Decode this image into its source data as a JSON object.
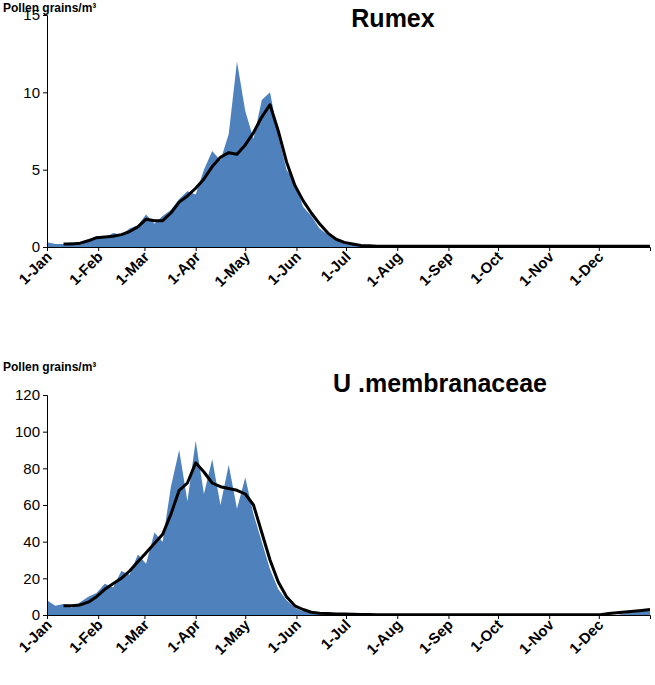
{
  "chart_data": [
    {
      "type": "line",
      "title": "Rumex",
      "ylabel": "Pollen grains/m³",
      "x": [
        1,
        6,
        11,
        16,
        21,
        26,
        31,
        36,
        41,
        46,
        51,
        56,
        61,
        66,
        71,
        76,
        81,
        86,
        91,
        96,
        101,
        106,
        111,
        116,
        121,
        126,
        131,
        136,
        141,
        146,
        151,
        156,
        161,
        166,
        171,
        176,
        181,
        186,
        191,
        196,
        201,
        206,
        211,
        216,
        221,
        226,
        231,
        236,
        241,
        246,
        251,
        256,
        261,
        266,
        271,
        276,
        281,
        286,
        291,
        296,
        301,
        306,
        311,
        316,
        321,
        326,
        331,
        336,
        341,
        346,
        351,
        356,
        361,
        366
      ],
      "series": [
        {
          "type": "area",
          "color": "#4f81bd",
          "values": [
            0.3,
            0.2,
            0.2,
            0.3,
            0.2,
            0.5,
            0.7,
            0.6,
            0.9,
            0.8,
            1.2,
            1.4,
            2.1,
            1.5,
            2.0,
            2.4,
            3.1,
            3.6,
            3.4,
            5.0,
            6.2,
            5.6,
            7.3,
            12.0,
            8.8,
            7.0,
            9.5,
            10.0,
            7.2,
            5.0,
            4.2,
            2.6,
            2.0,
            1.2,
            0.8,
            0.4,
            0.3,
            0.2,
            0.1,
            0.05,
            0,
            0,
            0,
            0,
            0,
            0,
            0,
            0,
            0,
            0,
            0,
            0,
            0,
            0,
            0,
            0,
            0,
            0,
            0,
            0,
            0,
            0,
            0,
            0,
            0,
            0,
            0,
            0,
            0,
            0,
            0,
            0,
            0,
            0
          ]
        },
        {
          "type": "line",
          "color": "#000000",
          "values": [
            null,
            null,
            0.2,
            0.2,
            0.25,
            0.4,
            0.6,
            0.65,
            0.7,
            0.8,
            1.0,
            1.3,
            1.8,
            1.7,
            1.7,
            2.2,
            2.9,
            3.3,
            3.8,
            4.4,
            5.2,
            5.8,
            6.1,
            6.0,
            6.6,
            7.4,
            8.4,
            9.2,
            7.5,
            5.5,
            4.0,
            3.0,
            2.2,
            1.5,
            0.9,
            0.5,
            0.3,
            0.2,
            0.1,
            0.08,
            0.05,
            0.05,
            0.05,
            0.05,
            0.05,
            0.05,
            0.05,
            0.05,
            0.05,
            0.05,
            0.05,
            0.05,
            0.05,
            0.05,
            0.05,
            0.05,
            0.05,
            0.05,
            0.05,
            0.05,
            0.05,
            0.05,
            0.05,
            0.05,
            0.05,
            0.05,
            0.05,
            0.05,
            0.05,
            0.05,
            0.05,
            0.05,
            0.05,
            0.05
          ]
        }
      ],
      "xlim": [
        1,
        366
      ],
      "xticks": [
        {
          "value": 1,
          "label": "1-Jan"
        },
        {
          "value": 32,
          "label": "1-Feb"
        },
        {
          "value": 60,
          "label": "1-Mar"
        },
        {
          "value": 91,
          "label": "1-Apr"
        },
        {
          "value": 121,
          "label": "1-May"
        },
        {
          "value": 152,
          "label": "1-Jun"
        },
        {
          "value": 182,
          "label": "1-Jul"
        },
        {
          "value": 213,
          "label": "1-Aug"
        },
        {
          "value": 244,
          "label": "1-Sep"
        },
        {
          "value": 274,
          "label": "1-Oct"
        },
        {
          "value": 305,
          "label": "1-Nov"
        },
        {
          "value": 335,
          "label": "1-Dec"
        }
      ],
      "ylim": [
        0,
        15
      ],
      "yticks": [
        0,
        5,
        10,
        15
      ],
      "grid": false
    },
    {
      "type": "line",
      "title": "U .membranaceae",
      "ylabel": "Pollen grains/m³",
      "x": [
        1,
        6,
        11,
        16,
        21,
        26,
        31,
        36,
        41,
        46,
        51,
        56,
        61,
        66,
        71,
        76,
        81,
        86,
        91,
        96,
        101,
        106,
        111,
        116,
        121,
        126,
        131,
        136,
        141,
        146,
        151,
        156,
        161,
        166,
        171,
        176,
        181,
        186,
        191,
        196,
        201,
        206,
        211,
        216,
        221,
        226,
        231,
        236,
        241,
        246,
        251,
        256,
        261,
        266,
        271,
        276,
        281,
        286,
        291,
        296,
        301,
        306,
        311,
        316,
        321,
        326,
        331,
        336,
        341,
        346,
        351,
        356,
        361,
        366
      ],
      "series": [
        {
          "type": "area",
          "color": "#4f81bd",
          "values": [
            8,
            5,
            6,
            4,
            7,
            10,
            12,
            17,
            15,
            24,
            22,
            33,
            28,
            45,
            40,
            70,
            90,
            62,
            95,
            66,
            85,
            60,
            82,
            58,
            75,
            55,
            40,
            25,
            14,
            8,
            4,
            2,
            1,
            0.5,
            0.3,
            0,
            0,
            0,
            0,
            0,
            0,
            0,
            0,
            0,
            0,
            0,
            0,
            0,
            0,
            0,
            0,
            0,
            0,
            0,
            0,
            0,
            0,
            0,
            0,
            0,
            0,
            0,
            0,
            0,
            0,
            0,
            0,
            0,
            0,
            0,
            1,
            1.5,
            2,
            2.5
          ]
        },
        {
          "type": "line",
          "color": "#000000",
          "values": [
            null,
            null,
            5,
            5,
            5.5,
            7,
            10,
            14,
            17,
            20,
            24,
            29,
            34,
            39,
            44,
            55,
            68,
            72,
            83,
            78,
            72,
            70,
            69,
            68,
            66,
            60,
            45,
            30,
            18,
            10,
            5,
            3,
            1.5,
            1,
            0.8,
            0.6,
            0.5,
            0.4,
            0.3,
            0.3,
            0.2,
            0.2,
            0.2,
            0.2,
            0.2,
            0.2,
            0.2,
            0.2,
            0.2,
            0.2,
            0.2,
            0.2,
            0.2,
            0.2,
            0.2,
            0.2,
            0.2,
            0.2,
            0.2,
            0.2,
            0.2,
            0.2,
            0.2,
            0.2,
            0.2,
            0.2,
            0.2,
            0.2,
            0.8,
            1.2,
            1.6,
            2.0,
            2.5,
            3.0
          ]
        }
      ],
      "xlim": [
        1,
        366
      ],
      "xticks": [
        {
          "value": 1,
          "label": "1-Jan"
        },
        {
          "value": 32,
          "label": "1-Feb"
        },
        {
          "value": 60,
          "label": "1-Mar"
        },
        {
          "value": 91,
          "label": "1-Apr"
        },
        {
          "value": 121,
          "label": "1-May"
        },
        {
          "value": 152,
          "label": "1-Jun"
        },
        {
          "value": 182,
          "label": "1-Jul"
        },
        {
          "value": 213,
          "label": "1-Aug"
        },
        {
          "value": 244,
          "label": "1-Sep"
        },
        {
          "value": 274,
          "label": "1-Oct"
        },
        {
          "value": 305,
          "label": "1-Nov"
        },
        {
          "value": 335,
          "label": "1-Dec"
        }
      ],
      "ylim": [
        0,
        120
      ],
      "yticks": [
        0,
        20,
        40,
        60,
        80,
        100,
        120
      ],
      "grid": false
    }
  ]
}
